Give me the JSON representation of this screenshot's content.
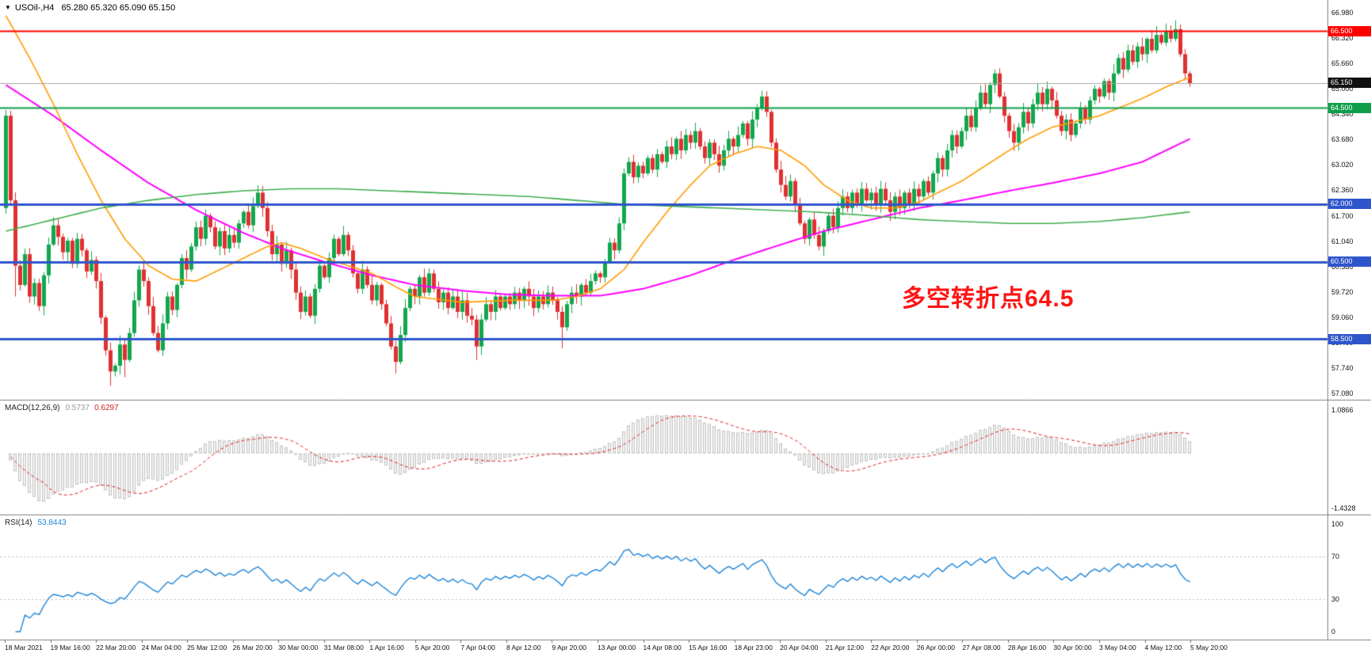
{
  "header": {
    "symbol_timeframe": "USOil-,H4",
    "ohlc": "65.280 65.320 65.090 65.150"
  },
  "annotation": {
    "text": "多空转折点64.5",
    "color": "#FF1414"
  },
  "chart_data": {
    "type": "candlestick",
    "symbol": "USOil-",
    "timeframe": "H4",
    "title": "USOil-,H4 65.280 65.320 65.090 65.150",
    "current_ohlc": {
      "open": 65.28,
      "high": 65.32,
      "low": 65.09,
      "close": 65.15
    },
    "y_range": {
      "max": 66.98,
      "min": 57.08
    },
    "price_axis_labels": [
      "66.980",
      "66.320",
      "65.660",
      "65.000",
      "64.340",
      "63.680",
      "63.020",
      "62.360",
      "61.700",
      "61.040",
      "60.380",
      "59.720",
      "59.060",
      "58.400",
      "57.740",
      "57.080"
    ],
    "time_axis_labels": [
      "18 Mar 2021",
      "19 Mar 16:00",
      "22 Mar 20:00",
      "24 Mar 04:00",
      "25 Mar 12:00",
      "26 Mar 20:00",
      "30 Mar 00:00",
      "31 Mar 08:00",
      "1 Apr 16:00",
      "5 Apr 20:00",
      "7 Apr 04:00",
      "8 Apr 12:00",
      "9 Apr 20:00",
      "13 Apr 00:00",
      "14 Apr 08:00",
      "15 Apr 16:00",
      "18 Apr 23:00",
      "20 Apr 04:00",
      "21 Apr 12:00",
      "22 Apr 20:00",
      "26 Apr 00:00",
      "27 Apr 08:00",
      "28 Apr 16:00",
      "30 Apr 00:00",
      "3 May 04:00",
      "4 May 12:00",
      "5 May 20:00"
    ],
    "first_open": 61.9,
    "closes": [
      64.3,
      62.1,
      60.4,
      59.9,
      60.7,
      59.6,
      59.95,
      59.35,
      60.15,
      60.95,
      61.45,
      61.15,
      60.75,
      61.05,
      60.45,
      61.1,
      60.8,
      60.25,
      60.55,
      60.0,
      59.05,
      58.2,
      57.65,
      57.8,
      58.35,
      57.95,
      58.65,
      59.5,
      60.3,
      60.0,
      59.35,
      58.65,
      58.2,
      58.9,
      59.6,
      59.25,
      59.9,
      60.6,
      60.3,
      60.9,
      61.4,
      61.1,
      61.7,
      61.4,
      60.9,
      61.3,
      60.85,
      61.2,
      61.0,
      61.5,
      61.8,
      61.45,
      61.95,
      62.3,
      61.9,
      61.3,
      60.7,
      60.95,
      60.45,
      60.8,
      60.3,
      59.7,
      59.2,
      59.6,
      59.1,
      59.8,
      60.4,
      60.1,
      60.6,
      61.1,
      60.7,
      61.2,
      60.8,
      60.2,
      59.8,
      60.3,
      59.9,
      59.5,
      59.9,
      59.4,
      58.9,
      58.3,
      57.9,
      58.6,
      59.3,
      59.8,
      59.6,
      60.1,
      59.7,
      60.2,
      59.8,
      59.45,
      59.7,
      59.3,
      59.6,
      59.2,
      59.5,
      59.1,
      59.0,
      58.3,
      59.0,
      59.4,
      59.2,
      59.6,
      59.3,
      59.6,
      59.4,
      59.7,
      59.5,
      59.8,
      59.6,
      59.3,
      59.6,
      59.4,
      59.7,
      59.5,
      59.2,
      58.8,
      59.4,
      59.7,
      59.6,
      59.9,
      59.7,
      60.0,
      60.2,
      60.1,
      60.5,
      61.0,
      60.8,
      61.5,
      62.8,
      63.1,
      62.7,
      63.0,
      62.8,
      63.2,
      62.9,
      63.3,
      63.1,
      63.5,
      63.3,
      63.7,
      63.4,
      63.8,
      63.6,
      63.9,
      63.5,
      63.2,
      63.6,
      63.3,
      63.0,
      63.4,
      63.7,
      63.5,
      63.8,
      64.1,
      63.7,
      64.2,
      64.5,
      64.8,
      64.4,
      63.6,
      62.9,
      62.5,
      62.2,
      62.6,
      62.0,
      61.5,
      61.1,
      61.6,
      61.2,
      60.9,
      61.3,
      61.7,
      61.4,
      61.9,
      62.2,
      61.9,
      62.3,
      62.0,
      62.4,
      62.1,
      62.3,
      62.0,
      62.4,
      62.1,
      61.8,
      62.2,
      61.9,
      62.3,
      62.0,
      62.4,
      62.2,
      62.6,
      62.3,
      62.8,
      63.2,
      62.9,
      63.4,
      63.8,
      63.5,
      63.9,
      64.3,
      64.0,
      64.5,
      64.9,
      64.6,
      65.1,
      65.4,
      64.8,
      64.3,
      63.9,
      63.6,
      64.0,
      64.4,
      64.1,
      64.6,
      64.9,
      64.6,
      65.0,
      64.7,
      64.3,
      63.9,
      64.2,
      63.8,
      64.1,
      64.5,
      64.2,
      64.7,
      65.0,
      64.8,
      65.2,
      64.9,
      65.4,
      65.8,
      65.5,
      66.0,
      65.7,
      66.1,
      65.9,
      66.3,
      66.0,
      66.4,
      66.2,
      66.5,
      66.3,
      66.55,
      65.9,
      65.4,
      65.15
    ],
    "wick_spikes": [
      {
        "i": 0,
        "low": 61.75,
        "high": 64.45
      },
      {
        "i": 2,
        "low": 59.6
      },
      {
        "i": 22,
        "low": 57.28
      },
      {
        "i": 25,
        "low": 57.5
      },
      {
        "i": 82,
        "low": 57.6
      },
      {
        "i": 99,
        "low": 57.95
      },
      {
        "i": 117,
        "low": 58.25
      },
      {
        "i": 159,
        "high": 64.95
      },
      {
        "i": 208,
        "high": 65.5
      },
      {
        "i": 236,
        "high": 66.15
      },
      {
        "i": 244,
        "high": 66.7
      },
      {
        "i": 246,
        "high": 66.78
      },
      {
        "i": 249,
        "low": 65.05
      }
    ],
    "horizontal_lines": [
      {
        "price": 66.5,
        "label": "66.500",
        "color": "#FF0000",
        "width": 2
      },
      {
        "price": 64.5,
        "label": "64.500",
        "color": "#0E9E4A",
        "width": 2
      },
      {
        "price": 62.0,
        "label": "62.000",
        "color": "#2F55CC",
        "width": 3
      },
      {
        "price": 60.5,
        "label": "60.500",
        "color": "#2F55CC",
        "width": 3
      },
      {
        "price": 58.5,
        "label": "58.500",
        "color": "#2F55CC",
        "width": 3
      }
    ],
    "current_price_line": {
      "price": 65.15,
      "label": "65.150",
      "line_color": "#A8A8A8",
      "badge_color": "#111111"
    },
    "moving_averages": [
      {
        "name": "ma-magenta",
        "color": "#FF00FF",
        "width": 2,
        "points": [
          [
            0,
            65.1
          ],
          [
            10,
            64.3
          ],
          [
            20,
            63.4
          ],
          [
            30,
            62.55
          ],
          [
            40,
            61.85
          ],
          [
            50,
            61.25
          ],
          [
            58,
            60.85
          ],
          [
            67,
            60.5
          ],
          [
            77,
            60.15
          ],
          [
            86,
            59.9
          ],
          [
            96,
            59.75
          ],
          [
            106,
            59.65
          ],
          [
            115,
            59.62
          ],
          [
            125,
            59.62
          ],
          [
            134,
            59.8
          ],
          [
            144,
            60.15
          ],
          [
            153,
            60.55
          ],
          [
            163,
            60.95
          ],
          [
            172,
            61.3
          ],
          [
            182,
            61.6
          ],
          [
            192,
            61.9
          ],
          [
            201,
            62.1
          ],
          [
            211,
            62.35
          ],
          [
            220,
            62.55
          ],
          [
            230,
            62.8
          ],
          [
            239,
            63.1
          ],
          [
            249,
            63.7
          ]
        ]
      },
      {
        "name": "ma-orange",
        "color": "#FF9C00",
        "width": 1.6,
        "points": [
          [
            0,
            66.9
          ],
          [
            5,
            65.8
          ],
          [
            10,
            64.6
          ],
          [
            15,
            63.3
          ],
          [
            20,
            62.1
          ],
          [
            25,
            61.1
          ],
          [
            30,
            60.4
          ],
          [
            35,
            60.05
          ],
          [
            40,
            60.0
          ],
          [
            45,
            60.3
          ],
          [
            50,
            60.6
          ],
          [
            55,
            60.9
          ],
          [
            58,
            61.0
          ],
          [
            62,
            60.85
          ],
          [
            67,
            60.6
          ],
          [
            72,
            60.4
          ],
          [
            77,
            60.2
          ],
          [
            82,
            59.85
          ],
          [
            86,
            59.6
          ],
          [
            96,
            59.45
          ],
          [
            106,
            59.5
          ],
          [
            115,
            59.5
          ],
          [
            120,
            59.6
          ],
          [
            125,
            59.8
          ],
          [
            130,
            60.3
          ],
          [
            134,
            61.0
          ],
          [
            139,
            61.8
          ],
          [
            144,
            62.5
          ],
          [
            148,
            63.0
          ],
          [
            153,
            63.3
          ],
          [
            158,
            63.5
          ],
          [
            163,
            63.4
          ],
          [
            168,
            63.0
          ],
          [
            172,
            62.5
          ],
          [
            177,
            62.1
          ],
          [
            182,
            61.9
          ],
          [
            187,
            61.9
          ],
          [
            192,
            62.05
          ],
          [
            196,
            62.3
          ],
          [
            201,
            62.6
          ],
          [
            206,
            63.0
          ],
          [
            211,
            63.4
          ],
          [
            215,
            63.7
          ],
          [
            220,
            64.0
          ],
          [
            225,
            64.15
          ],
          [
            230,
            64.3
          ],
          [
            235,
            64.55
          ],
          [
            239,
            64.75
          ],
          [
            244,
            65.05
          ],
          [
            249,
            65.3
          ]
        ]
      },
      {
        "name": "ma-green",
        "color": "#3FAE4F",
        "width": 1.6,
        "points": [
          [
            0,
            61.3
          ],
          [
            10,
            61.6
          ],
          [
            20,
            61.9
          ],
          [
            30,
            62.1
          ],
          [
            40,
            62.25
          ],
          [
            50,
            62.35
          ],
          [
            60,
            62.4
          ],
          [
            70,
            62.4
          ],
          [
            80,
            62.35
          ],
          [
            90,
            62.3
          ],
          [
            100,
            62.25
          ],
          [
            110,
            62.2
          ],
          [
            120,
            62.1
          ],
          [
            130,
            62.0
          ],
          [
            140,
            61.95
          ],
          [
            150,
            61.9
          ],
          [
            160,
            61.85
          ],
          [
            170,
            61.8
          ],
          [
            182,
            61.7
          ],
          [
            192,
            61.6
          ],
          [
            201,
            61.55
          ],
          [
            211,
            61.5
          ],
          [
            220,
            61.5
          ],
          [
            230,
            61.55
          ],
          [
            239,
            61.65
          ],
          [
            249,
            61.8
          ]
        ]
      }
    ],
    "colors": {
      "up": "#12A74D",
      "down": "#E03030",
      "background": "#FFFFFF",
      "separator": "#7F7F7F"
    },
    "indicators": {
      "macd": {
        "label": "MACD(12,26,9)",
        "value_main": "0.5737",
        "value_signal": "0.6297",
        "fast": 12,
        "slow": 26,
        "signal": 9,
        "scale_max_label": "1.0866",
        "scale_min_label": "-1.4328",
        "range": [
          -1.4328,
          1.0866
        ],
        "histogram_fill": "#F3F3F3",
        "histogram_stroke": "#C2C2C2",
        "signal_color": "#E02020"
      },
      "rsi": {
        "label": "RSI(14)",
        "value": "53.8443",
        "period": 14,
        "scale_labels": [
          "100",
          "70",
          "30",
          "0"
        ],
        "levels": [
          70,
          30
        ],
        "line_color": "#1F86D8"
      }
    }
  }
}
